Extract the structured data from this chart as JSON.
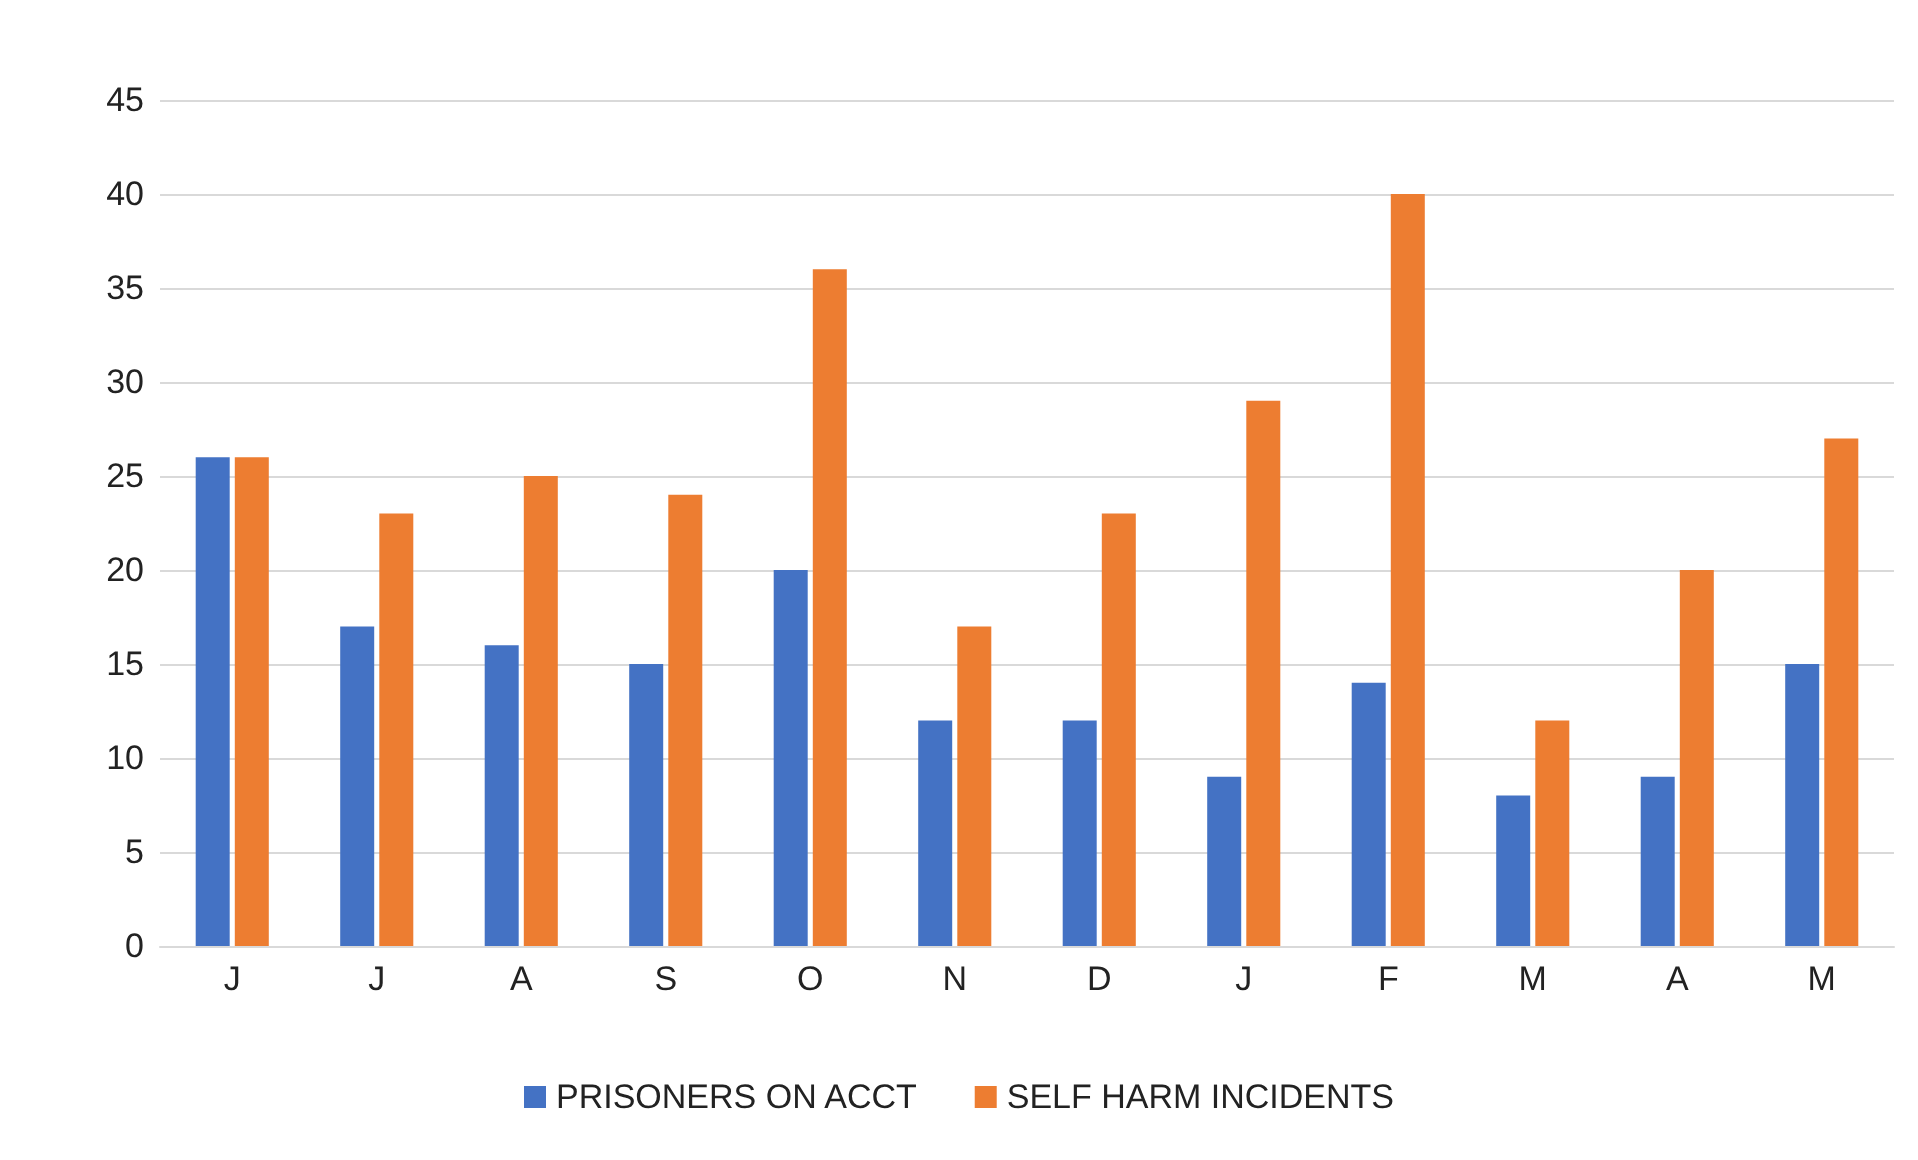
{
  "chart_data": {
    "type": "bar",
    "categories": [
      "J",
      "J",
      "A",
      "S",
      "O",
      "N",
      "D",
      "J",
      "F",
      "M",
      "A",
      "M"
    ],
    "series": [
      {
        "name": "PRISONERS ON ACCT",
        "color": "#4472c4",
        "values": [
          26,
          17,
          16,
          15,
          20,
          12,
          12,
          9,
          14,
          8,
          9,
          15
        ]
      },
      {
        "name": "SELF HARM INCIDENTS",
        "color": "#ed7d31",
        "values": [
          26,
          23,
          25,
          24,
          36,
          17,
          23,
          29,
          40,
          12,
          20,
          27
        ]
      }
    ],
    "ylim": [
      0,
      45
    ],
    "yticks": [
      0,
      5,
      10,
      15,
      20,
      25,
      30,
      35,
      40,
      45
    ],
    "grid": "y",
    "legend": "bottom"
  }
}
